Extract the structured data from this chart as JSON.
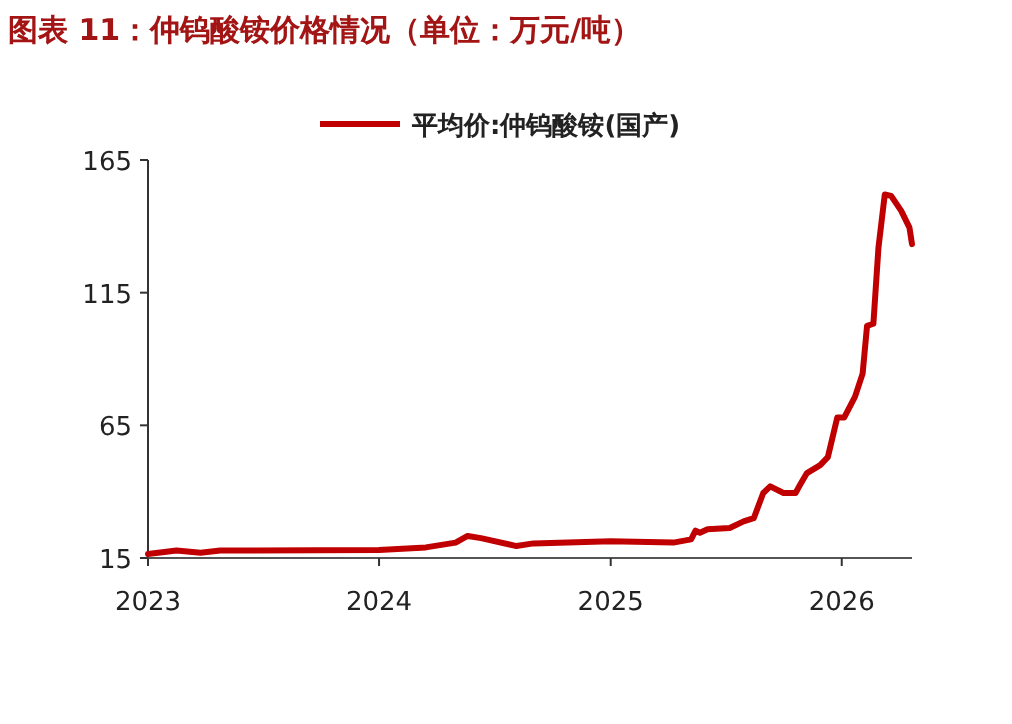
{
  "chart_data": {
    "type": "line",
    "title": "图表 11：仲钨酸铵价格情况（单位：万元/吨）",
    "x": [
      "2023-01-01",
      "2023-02-15",
      "2023-03-25",
      "2023-04-25",
      "2024-01-01",
      "2024-03-15",
      "2024-05-01",
      "2024-05-20",
      "2024-06-10",
      "2024-08-05",
      "2024-09-01",
      "2025-01-01",
      "2025-04-10",
      "2025-05-08",
      "2025-05-15",
      "2025-05-22",
      "2025-06-03",
      "2025-07-08",
      "2025-07-30",
      "2025-08-15",
      "2025-08-30",
      "2025-09-10",
      "2025-10-01",
      "2025-10-20",
      "2025-10-27",
      "2025-11-07",
      "2025-11-28",
      "2025-12-10",
      "2025-12-25",
      "2026-01-05",
      "2026-01-22",
      "2026-02-03",
      "2026-02-10",
      "2026-02-20",
      "2026-02-28",
      "2026-03-10",
      "2026-03-20",
      "2026-04-05",
      "2026-04-18",
      "2026-04-22"
    ],
    "series": [
      {
        "name": "平均价:仲钨酸铵(国产)",
        "color": "#c00000",
        "values": [
          16.5,
          17.8,
          17,
          17.8,
          18,
          19,
          20.8,
          23.3,
          22.5,
          19.5,
          20.5,
          21.3,
          20.8,
          22,
          25.3,
          24.5,
          25.8,
          26.3,
          28.8,
          30,
          39.5,
          42,
          39.5,
          39.5,
          42.5,
          47,
          50,
          53,
          68,
          68,
          75.8,
          84.5,
          102.5,
          103.3,
          132,
          152,
          151.5,
          145.8,
          139.5,
          133.3
        ]
      }
    ],
    "xlim": [
      "2023-01-01",
      "2026-04-22"
    ],
    "xticks": [
      {
        "value": "2023-01-01",
        "label": "2023"
      },
      {
        "value": "2024-01-01",
        "label": "2024"
      },
      {
        "value": "2025-01-01",
        "label": "2025"
      },
      {
        "value": "2026-01-01",
        "label": "2026"
      }
    ],
    "ylim": [
      15,
      165
    ],
    "yticks": [
      15,
      65,
      115,
      165
    ],
    "legend": "top",
    "grid": false,
    "marker": "none",
    "line_style": "solid"
  }
}
